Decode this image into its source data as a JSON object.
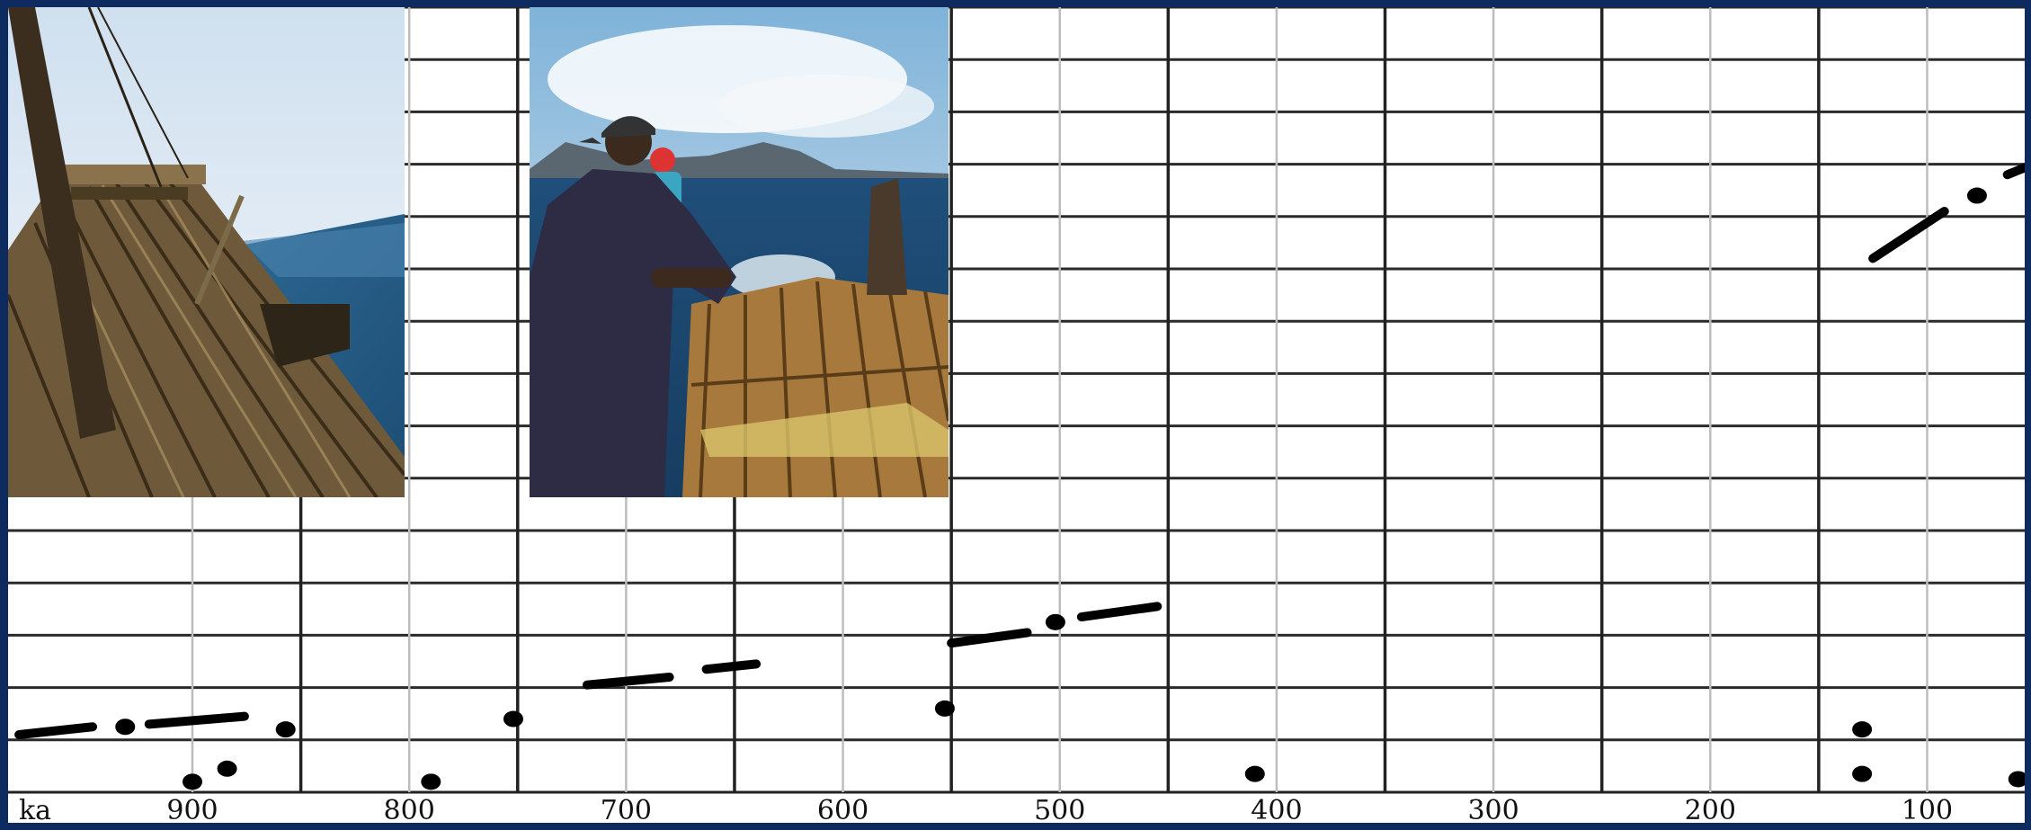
{
  "chart_data": {
    "type": "scatter",
    "xlabel": "ka",
    "x_reversed": true,
    "xlim": [
      985,
      55
    ],
    "ylim": [
      0,
      15
    ],
    "grid": true,
    "x_ticks": [
      900,
      800,
      700,
      600,
      500,
      400,
      300,
      200,
      100
    ],
    "x_tick_labels": [
      "900",
      "800",
      "700",
      "600",
      "500",
      "400",
      "300",
      "200",
      "100"
    ],
    "points": [
      {
        "x": 931,
        "y": 1.25
      },
      {
        "x": 900,
        "y": 0.2
      },
      {
        "x": 884,
        "y": 0.45
      },
      {
        "x": 857,
        "y": 1.2
      },
      {
        "x": 790,
        "y": 0.2
      },
      {
        "x": 752,
        "y": 1.4
      },
      {
        "x": 553,
        "y": 1.6
      },
      {
        "x": 502,
        "y": 3.25
      },
      {
        "x": 410,
        "y": 0.35
      },
      {
        "x": 77,
        "y": 11.4
      },
      {
        "x": 130,
        "y": 1.2
      },
      {
        "x": 130,
        "y": 0.35
      },
      {
        "x": 58,
        "y": 0.25
      }
    ],
    "segments": [
      {
        "x1": 980,
        "y1": 1.1,
        "x2": 946,
        "y2": 1.25
      },
      {
        "x1": 920,
        "y1": 1.3,
        "x2": 876,
        "y2": 1.45
      },
      {
        "x1": 718,
        "y1": 2.05,
        "x2": 680,
        "y2": 2.2
      },
      {
        "x1": 663,
        "y1": 2.35,
        "x2": 640,
        "y2": 2.45
      },
      {
        "x1": 550,
        "y1": 2.85,
        "x2": 515,
        "y2": 3.05
      },
      {
        "x1": 490,
        "y1": 3.35,
        "x2": 455,
        "y2": 3.55
      },
      {
        "x1": 125,
        "y1": 10.2,
        "x2": 92,
        "y2": 11.1
      },
      {
        "x1": 63,
        "y1": 11.8,
        "x2": 33,
        "y2": 12.3
      }
    ]
  },
  "photos": {
    "left": {
      "subject": "bamboo raft at sea, mast and rigging"
    },
    "right": {
      "subject": "man in cap on bamboo raft facing island"
    }
  }
}
